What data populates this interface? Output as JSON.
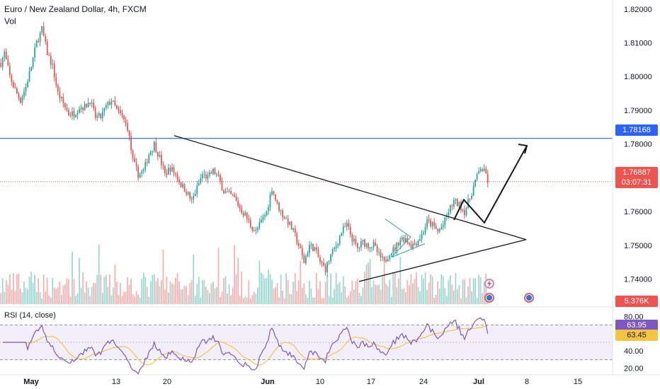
{
  "header": {
    "title": "Euro / New Zealand Dollar, 4h, FXCM",
    "volume_label": "Vol",
    "rsi_label": "RSI (14, close)"
  },
  "colors": {
    "up": "#26a69a",
    "down": "#ef5350",
    "hline": "#2962ff",
    "rsi_line": "#7e57c2",
    "rsi_ma": "#f5c542",
    "rsi_band": "#f3effa"
  },
  "chart_data": {
    "type": "candlestick",
    "symbol": "EURNZD",
    "timeframe": "4h",
    "price_axis": {
      "ticks": [
        "1.82000",
        "1.81000",
        "1.80000",
        "1.79000",
        "1.78000",
        "1.77000",
        "1.76000",
        "1.75000",
        "1.74000"
      ],
      "ylim": [
        1.733,
        1.821
      ]
    },
    "x_axis": {
      "ticks": [
        "May",
        "13",
        "20",
        "Jun",
        "10",
        "17",
        "24",
        "Jul",
        "8",
        "15"
      ]
    },
    "price_labels": {
      "horizontal_line": "1.78168",
      "current_price": "1.76887",
      "countdown": "03:07:31",
      "volume": "5.376K"
    },
    "horizontal_line_value": 1.78168,
    "current_price_value": 1.76887,
    "price_path": [
      [
        0,
        1.804
      ],
      [
        2,
        1.807
      ],
      [
        5,
        1.8
      ],
      [
        8,
        1.796
      ],
      [
        11,
        1.793
      ],
      [
        14,
        1.797
      ],
      [
        17,
        1.803
      ],
      [
        20,
        1.81
      ],
      [
        23,
        1.814
      ],
      [
        26,
        1.807
      ],
      [
        29,
        1.803
      ],
      [
        32,
        1.795
      ],
      [
        35,
        1.792
      ],
      [
        38,
        1.789
      ],
      [
        41,
        1.789
      ],
      [
        44,
        1.791
      ],
      [
        47,
        1.791
      ],
      [
        50,
        1.793
      ],
      [
        53,
        1.788
      ],
      [
        56,
        1.788
      ],
      [
        59,
        1.791
      ],
      [
        62,
        1.793
      ],
      [
        65,
        1.79
      ],
      [
        68,
        1.788
      ],
      [
        71,
        1.785
      ],
      [
        74,
        1.775
      ],
      [
        77,
        1.771
      ],
      [
        80,
        1.772
      ],
      [
        83,
        1.777
      ],
      [
        86,
        1.78
      ],
      [
        89,
        1.776
      ],
      [
        92,
        1.771
      ],
      [
        95,
        1.773
      ],
      [
        98,
        1.771
      ],
      [
        101,
        1.768
      ],
      [
        104,
        1.766
      ],
      [
        107,
        1.763
      ],
      [
        110,
        1.767
      ],
      [
        113,
        1.771
      ],
      [
        116,
        1.77
      ],
      [
        119,
        1.772
      ],
      [
        122,
        1.77
      ],
      [
        125,
        1.766
      ],
      [
        128,
        1.765
      ],
      [
        131,
        1.764
      ],
      [
        134,
        1.761
      ],
      [
        137,
        1.759
      ],
      [
        140,
        1.756
      ],
      [
        143,
        1.754
      ],
      [
        146,
        1.757
      ],
      [
        149,
        1.76
      ],
      [
        152,
        1.767
      ],
      [
        155,
        1.762
      ],
      [
        158,
        1.759
      ],
      [
        161,
        1.757
      ],
      [
        164,
        1.754
      ],
      [
        167,
        1.75
      ],
      [
        170,
        1.745
      ],
      [
        173,
        1.75
      ],
      [
        176,
        1.749
      ],
      [
        179,
        1.745
      ],
      [
        182,
        1.743
      ],
      [
        185,
        1.747
      ],
      [
        188,
        1.75
      ],
      [
        191,
        1.754
      ],
      [
        194,
        1.756
      ],
      [
        197,
        1.752
      ],
      [
        200,
        1.749
      ],
      [
        203,
        1.751
      ],
      [
        206,
        1.75
      ],
      [
        209,
        1.75
      ],
      [
        212,
        1.747
      ],
      [
        215,
        1.745
      ],
      [
        218,
        1.748
      ],
      [
        221,
        1.749
      ],
      [
        224,
        1.752
      ],
      [
        227,
        1.752
      ],
      [
        230,
        1.75
      ],
      [
        233,
        1.751
      ],
      [
        236,
        1.753
      ],
      [
        239,
        1.757
      ],
      [
        242,
        1.756
      ],
      [
        245,
        1.754
      ],
      [
        248,
        1.756
      ],
      [
        251,
        1.76
      ],
      [
        254,
        1.763
      ],
      [
        257,
        1.762
      ],
      [
        260,
        1.76
      ],
      [
        263,
        1.764
      ],
      [
        266,
        1.769
      ],
      [
        269,
        1.773
      ],
      [
        272,
        1.771
      ],
      [
        273,
        1.769
      ]
    ],
    "price_path_x_range": [
      0,
      273
    ],
    "rsi_axis": {
      "ticks": [
        "80.00",
        "40.00",
        "20.00"
      ],
      "ylim": [
        14,
        86
      ],
      "band": [
        30,
        70
      ]
    },
    "rsi": {
      "value_label": "63.95",
      "ma_label": "63.45",
      "value": 63.95,
      "ma": 63.45
    },
    "drawings": {
      "triangle_upper_line": [
        [
          1.7825,
          0.2
        ],
        [
          1.7517,
          1.0
        ]
      ],
      "triangle_lower_line": [
        [
          1.7393,
          0.355
        ],
        [
          1.7517,
          1.0
        ]
      ],
      "arrow_path_prices": [
        1.7575,
        1.7635,
        1.7567,
        1.7795
      ]
    }
  }
}
